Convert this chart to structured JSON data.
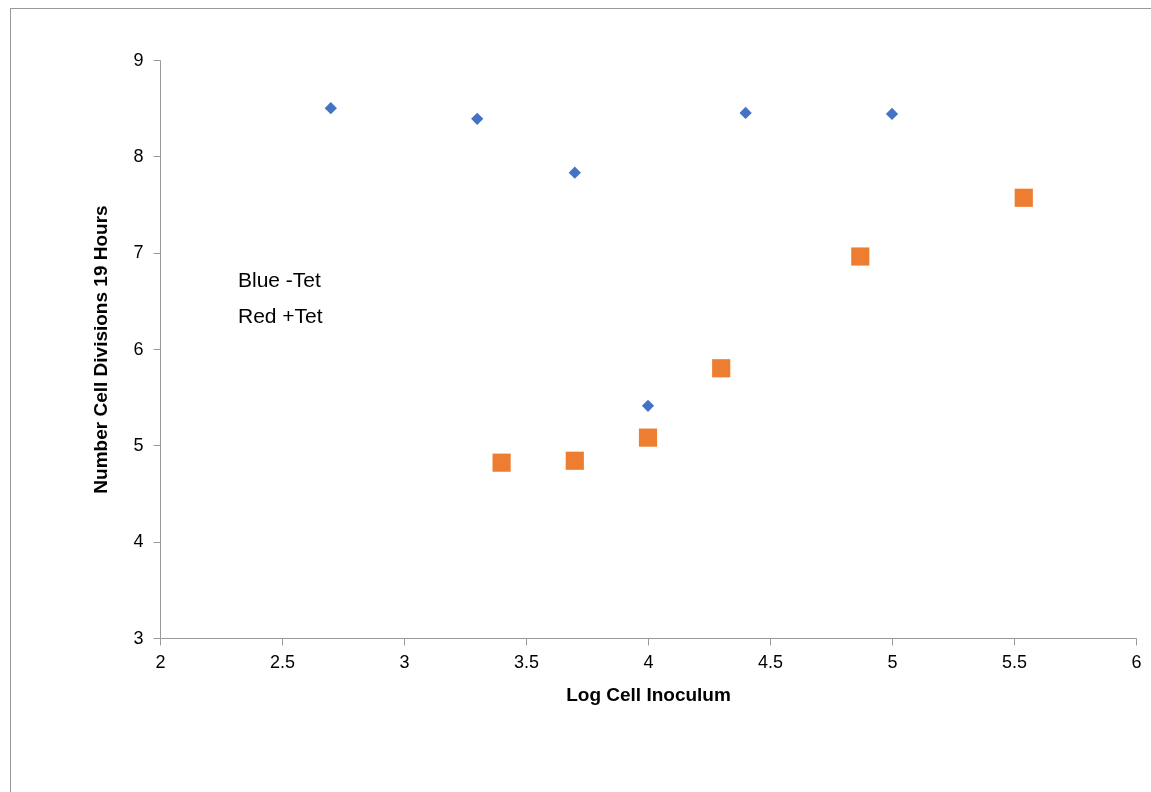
{
  "chart_data": {
    "type": "scatter",
    "xlabel": "Log Cell Inoculum",
    "ylabel": "Number Cell Divisions 19 Hours",
    "annotations": [
      "Blue -Tet",
      "Red +Tet"
    ],
    "xlim": [
      2,
      6
    ],
    "xticks": [
      2,
      2.5,
      3,
      3.5,
      4,
      4.5,
      5,
      5.5,
      6
    ],
    "ylim": [
      3,
      9
    ],
    "yticks": [
      3,
      4,
      5,
      6,
      7,
      8,
      9
    ],
    "grid": false,
    "series": [
      {
        "color": "#4472c4",
        "marker": "diamond",
        "x": [
          2.7,
          3.3,
          3.7,
          4.0,
          4.4,
          5.0
        ],
        "values": [
          8.5,
          8.39,
          7.83,
          5.41,
          8.45,
          8.44
        ]
      },
      {
        "color": "#ed7d31",
        "marker": "square",
        "x": [
          3.4,
          3.7,
          4.0,
          4.3,
          4.87,
          5.54
        ],
        "values": [
          4.82,
          4.84,
          5.08,
          5.8,
          6.96,
          7.57
        ]
      }
    ]
  }
}
